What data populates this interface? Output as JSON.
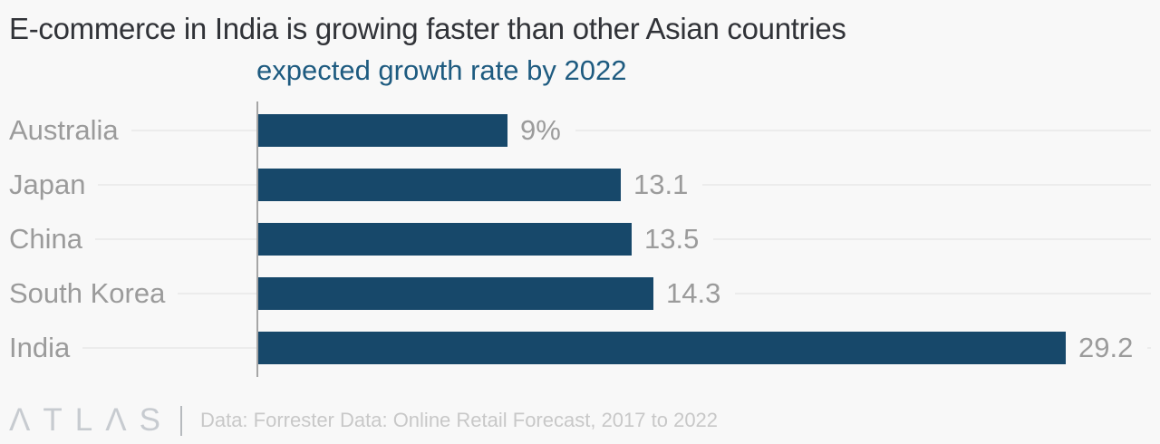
{
  "title": "E-commerce in India is growing faster than other Asian countries",
  "subtitle": "expected growth rate by 2022",
  "footer": {
    "logo_text": "ΛTLΛS",
    "source": "Data: Forrester Data: Online Retail Forecast, 2017 to 2022"
  },
  "colors": {
    "background": "#f8f8f8",
    "title": "#313338",
    "subtitle": "#1e5b80",
    "bar": "#17486a",
    "label": "#9b9b9b",
    "leader": "#ececec",
    "axis": "#a6a6a6",
    "logo": "#c7cbd0",
    "source": "#c8c8c8"
  },
  "chart_data": {
    "type": "bar",
    "orientation": "horizontal",
    "title": "E-commerce in India is growing faster than other Asian countries",
    "subtitle": "expected growth rate by 2022",
    "categories": [
      "Australia",
      "Japan",
      "China",
      "South Korea",
      "India"
    ],
    "values": [
      9,
      13.1,
      13.5,
      14.3,
      29.2
    ],
    "value_labels": [
      "9%",
      "13.1",
      "13.5",
      "14.3",
      "29.2"
    ],
    "unit": "percent",
    "xlim": [
      0,
      32.3
    ],
    "grid": false,
    "legend": false,
    "bar_color": "#17486a"
  }
}
